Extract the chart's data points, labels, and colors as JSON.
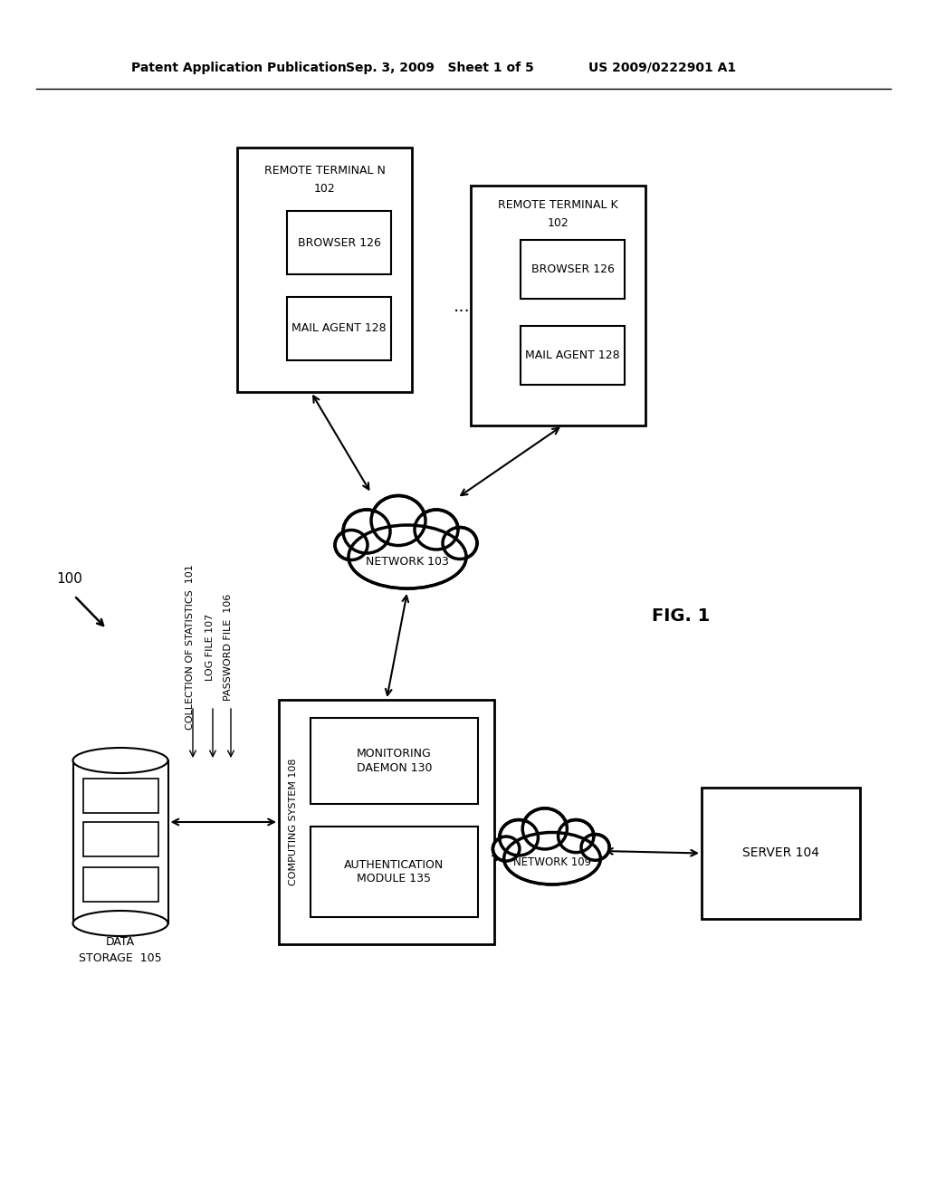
{
  "bg_color": "#ffffff",
  "header_left": "Patent Application Publication",
  "header_mid": "Sep. 3, 2009   Sheet 1 of 5",
  "header_right": "US 2009/0222901 A1",
  "fig_label": "FIG. 1",
  "system_label": "100",
  "collection_label": "COLLECTION OF STATISTICS  101",
  "log_file_label": "LOG FILE 107",
  "password_file_label": "PASSWORD FILE  106",
  "data_storage_label1": "DATA",
  "data_storage_label2": "STORAGE  105",
  "computing_system_label": "COMPUTING SYSTEM 108",
  "monitoring_daemon_label": "MONITORING\nDAEMON 130",
  "auth_module_label": "AUTHENTICATION\nMODULE 135",
  "network103_label": "NETWORK 103",
  "network109_label": "NETWORK 109",
  "server_label": "SERVER 104",
  "terminal_n_title": "REMOTE TERMINAL N",
  "terminal_n_num": "102",
  "terminal_k_title": "REMOTE TERMINAL K",
  "terminal_k_num": "102",
  "browser_label": "BROWSER 126",
  "mail_agent_label": "MAIL AGENT 128",
  "dots": "...",
  "num100": "100"
}
